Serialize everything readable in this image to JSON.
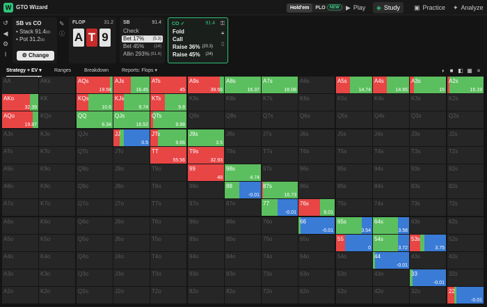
{
  "topbar": {
    "logo": "W",
    "app_title": "GTO Wizard",
    "holdem": "Hold'em",
    "plo": "PLO",
    "new_badge": "NEW",
    "nav": [
      {
        "label": "Play",
        "icon": "play-icon"
      },
      {
        "label": "Study",
        "icon": "study-icon"
      },
      {
        "label": "Practice",
        "icon": "gamepad-icon"
      },
      {
        "label": "Analyze",
        "icon": "bulb-icon"
      }
    ]
  },
  "scenario": {
    "title": "SB vs CO",
    "stack_label": "Stack 91.4",
    "pot_label": "Pot 31.2",
    "unit": "bb",
    "change_label": "Change"
  },
  "flop": {
    "label": "FLOP",
    "pot": "31.2",
    "cards": [
      {
        "rank": "A",
        "suit": "spades"
      },
      {
        "rank": "T",
        "suit": "hearts"
      },
      {
        "rank": "9",
        "suit": "spades"
      }
    ]
  },
  "sb_panel": {
    "position": "SB",
    "stack": "91.4",
    "actions": [
      {
        "label": "Check",
        "amount": ""
      },
      {
        "label": "Bet 17%",
        "amount": "(5.3)",
        "selected": true
      },
      {
        "label": "Bet 45%",
        "amount": "(14)"
      },
      {
        "label": "Allin 293%",
        "amount": "(91.4)"
      }
    ]
  },
  "co_panel": {
    "position": "CO",
    "stack": "91.4",
    "actions": [
      {
        "label": "Fold",
        "amount": ""
      },
      {
        "label": "Call",
        "amount": ""
      },
      {
        "label": "Raise 36%",
        "amount": "(20.3)"
      },
      {
        "label": "Raise 45%",
        "amount": "(24)"
      }
    ]
  },
  "tabs": [
    {
      "label": "Strategy + EV"
    },
    {
      "label": "Ranges"
    },
    {
      "label": "Breakdown"
    },
    {
      "label": "Reports: Flops"
    }
  ],
  "colors": {
    "fold": "#3a7bd5",
    "call": "#5cbf5f",
    "raise_small": "#e84545",
    "raise_large": "#c01f2a",
    "empty": "#262626",
    "accent": "#2fc479"
  },
  "grid": {
    "ranks": [
      "A",
      "K",
      "Q",
      "J",
      "T",
      "9",
      "8",
      "7",
      "6",
      "5",
      "4",
      "3",
      "2"
    ],
    "cells": [
      {
        "hand": "AQs",
        "r": 0,
        "c": 2,
        "ev": "19.58",
        "fold": 0,
        "call": 0.08,
        "raise": 0.92
      },
      {
        "hand": "AJs",
        "r": 0,
        "c": 3,
        "ev": "16.45",
        "fold": 0,
        "call": 0.52,
        "raise": 0.48
      },
      {
        "hand": "ATs",
        "r": 0,
        "c": 4,
        "ev": "45",
        "fold": 0,
        "call": 0,
        "raise": 1
      },
      {
        "hand": "A9s",
        "r": 0,
        "c": 5,
        "ev": "39.56",
        "fold": 0,
        "call": 0.12,
        "raise": 0.88
      },
      {
        "hand": "A8s",
        "r": 0,
        "c": 6,
        "ev": "16.37",
        "fold": 0,
        "call": 1,
        "raise": 0
      },
      {
        "hand": "A7s",
        "r": 0,
        "c": 7,
        "ev": "16.08",
        "fold": 0,
        "call": 1,
        "raise": 0
      },
      {
        "hand": "A5s",
        "r": 0,
        "c": 9,
        "ev": "14.74",
        "fold": 0,
        "call": 0.62,
        "raise": 0.38
      },
      {
        "hand": "A4s",
        "r": 0,
        "c": 10,
        "ev": "14.65",
        "fold": 0,
        "call": 0.62,
        "raise": 0.38
      },
      {
        "hand": "A3s",
        "r": 0,
        "c": 11,
        "ev": "15",
        "fold": 0,
        "call": 0.88,
        "raise": 0.12
      },
      {
        "hand": "A2s",
        "r": 0,
        "c": 12,
        "ev": "15.19",
        "fold": 0,
        "call": 0.95,
        "raise": 0.05
      },
      {
        "hand": "AKo",
        "r": 1,
        "c": 0,
        "ev": "32.39",
        "fold": 0,
        "call": 0.24,
        "raise": 0.76
      },
      {
        "hand": "KQs",
        "r": 1,
        "c": 2,
        "ev": "10.6",
        "fold": 0,
        "call": 0.68,
        "raise": 0.32
      },
      {
        "hand": "KJs",
        "r": 1,
        "c": 3,
        "ev": "9.74",
        "fold": 0,
        "call": 0.72,
        "raise": 0.28
      },
      {
        "hand": "KTs",
        "r": 1,
        "c": 4,
        "ev": "9.8",
        "fold": 0,
        "call": 0.6,
        "raise": 0.4
      },
      {
        "hand": "AQo",
        "r": 2,
        "c": 0,
        "ev": "19.87",
        "fold": 0,
        "call": 0.15,
        "raise": 0.85
      },
      {
        "hand": "QQ",
        "r": 2,
        "c": 2,
        "ev": "6.34",
        "fold": 0,
        "call": 1,
        "raise": 0
      },
      {
        "hand": "QJs",
        "r": 2,
        "c": 3,
        "ev": "16.52",
        "fold": 0,
        "call": 1,
        "raise": 0
      },
      {
        "hand": "QTs",
        "r": 2,
        "c": 4,
        "ev": "9.98",
        "fold": 0,
        "call": 0.92,
        "raise": 0.08
      },
      {
        "hand": "JJ",
        "r": 3,
        "c": 3,
        "ev": "0.5",
        "fold": 0.72,
        "call": 0.1,
        "raise": 0.18
      },
      {
        "hand": "JTs",
        "r": 3,
        "c": 4,
        "ev": "9.66",
        "fold": 0,
        "call": 0.78,
        "raise": 0.22
      },
      {
        "hand": "J9s",
        "r": 3,
        "c": 5,
        "ev": "3.5",
        "fold": 0,
        "call": 1,
        "raise": 0
      },
      {
        "hand": "TT",
        "r": 4,
        "c": 4,
        "ev": "55.56",
        "fold": 0,
        "call": 0,
        "raise": 1
      },
      {
        "hand": "T9s",
        "r": 4,
        "c": 5,
        "ev": "32.93",
        "fold": 0,
        "call": 0,
        "raise": 1
      },
      {
        "hand": "99",
        "r": 5,
        "c": 5,
        "ev": "48",
        "fold": 0,
        "call": 0,
        "raise": 1
      },
      {
        "hand": "98s",
        "r": 5,
        "c": 6,
        "ev": "4.74",
        "fold": 0,
        "call": 1,
        "raise": 0
      },
      {
        "hand": "88",
        "r": 6,
        "c": 6,
        "ev": "-0.01",
        "fold": 0.6,
        "call": 0.4,
        "raise": 0
      },
      {
        "hand": "87s",
        "r": 6,
        "c": 7,
        "ev": "16.73",
        "fold": 0,
        "call": 0.96,
        "raise": 0.04
      },
      {
        "hand": "77",
        "r": 7,
        "c": 7,
        "ev": "-0.01",
        "fold": 0.56,
        "call": 0.44,
        "raise": 0
      },
      {
        "hand": "76s",
        "r": 7,
        "c": 8,
        "ev": "8.01",
        "fold": 0,
        "call": 0.4,
        "raise": 0.6
      },
      {
        "hand": "66",
        "r": 8,
        "c": 8,
        "ev": "-0.01",
        "fold": 0.95,
        "call": 0.05,
        "raise": 0
      },
      {
        "hand": "65s",
        "r": 8,
        "c": 9,
        "ev": "3.54",
        "fold": 0.28,
        "call": 0.72,
        "raise": 0
      },
      {
        "hand": "64s",
        "r": 8,
        "c": 10,
        "ev": "3.58",
        "fold": 0.3,
        "call": 0.7,
        "raise": 0
      },
      {
        "hand": "55",
        "r": 9,
        "c": 9,
        "ev": "0",
        "fold": 0.75,
        "call": 0,
        "raise": 0.25
      },
      {
        "hand": "54s",
        "r": 9,
        "c": 10,
        "ev": "3.72",
        "fold": 0.3,
        "call": 0.7,
        "raise": 0
      },
      {
        "hand": "53s",
        "r": 9,
        "c": 11,
        "ev": "3.75",
        "fold": 0.6,
        "call": 0.12,
        "raise": 0.28
      },
      {
        "hand": "44",
        "r": 10,
        "c": 10,
        "ev": "-0.01",
        "fold": 0.95,
        "call": 0.05,
        "raise": 0
      },
      {
        "hand": "33",
        "r": 11,
        "c": 11,
        "ev": "-0.01",
        "fold": 0.92,
        "call": 0.08,
        "raise": 0
      },
      {
        "hand": "22",
        "r": 12,
        "c": 12,
        "ev": "-0.01",
        "fold": 0.75,
        "call": 0.05,
        "raise": 0.2
      }
    ]
  }
}
